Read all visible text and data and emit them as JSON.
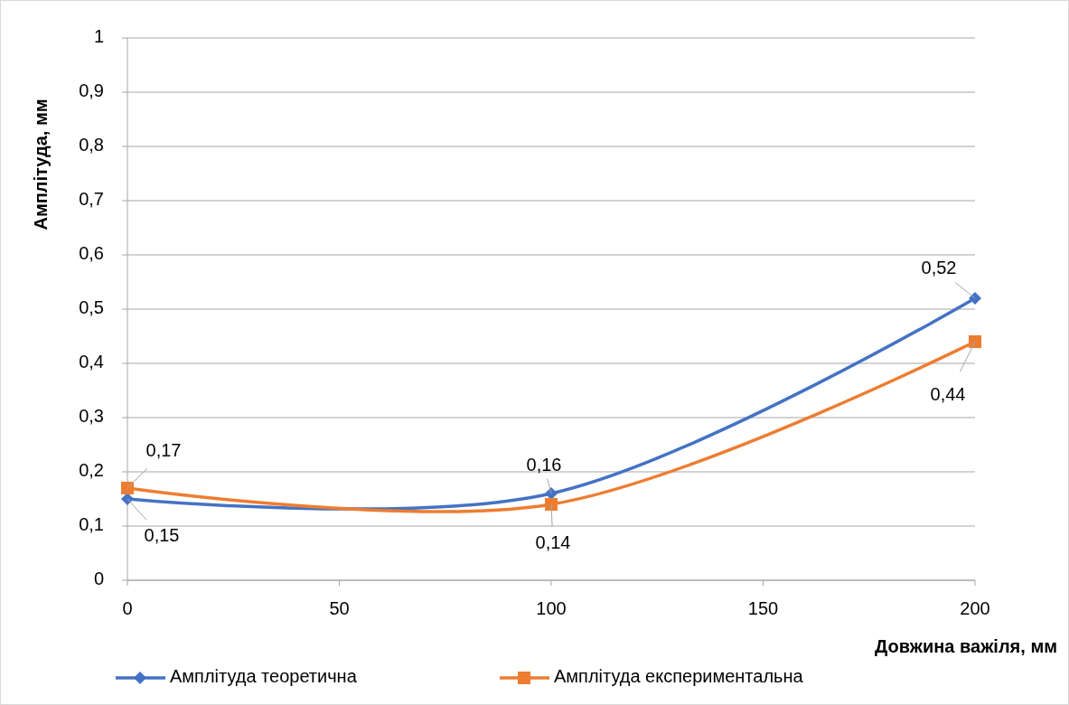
{
  "chart_data": {
    "type": "line",
    "xlabel": "Довжина важіля, мм",
    "ylabel": "Амплітуда, мм",
    "x": [
      0,
      100,
      200
    ],
    "series": [
      {
        "name": "Амплітуда теоретична",
        "color": "#4472c4",
        "marker": "diamond",
        "values": [
          0.15,
          0.16,
          0.52
        ],
        "value_labels": [
          "0,15",
          "0,16",
          "0,52"
        ]
      },
      {
        "name": "Амплітуда експериментальна",
        "color": "#ed7d31",
        "marker": "square",
        "values": [
          0.17,
          0.14,
          0.44
        ],
        "value_labels": [
          "0,17",
          "0,14",
          "0,44"
        ]
      }
    ],
    "xlim": [
      0,
      200
    ],
    "xticks": [
      0,
      50,
      100,
      150,
      200
    ],
    "ylim": [
      0,
      1
    ],
    "yticks": [
      0,
      {
        "value": 0.1,
        "label": "0,1"
      },
      {
        "value": 0.2,
        "label": "0,2"
      },
      {
        "value": 0.3,
        "label": "0,3"
      },
      {
        "value": 0.4,
        "label": "0,4"
      },
      {
        "value": 0.5,
        "label": "0,5"
      },
      {
        "value": 0.6,
        "label": "0,6"
      },
      {
        "value": 0.7,
        "label": "0,7"
      },
      {
        "value": 0.8,
        "label": "0,8"
      },
      {
        "value": 0.9,
        "label": "0,9"
      },
      1
    ],
    "grid": "y",
    "legend": "bottom",
    "line_style": "solid"
  }
}
